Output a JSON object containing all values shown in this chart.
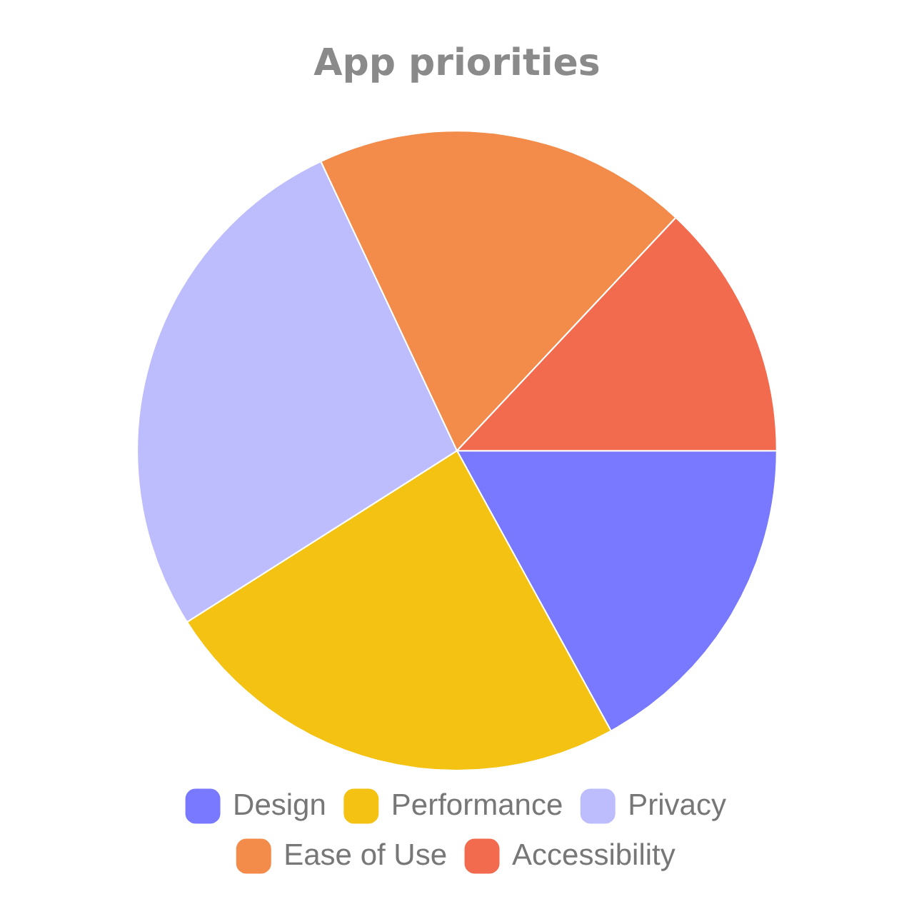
{
  "chart_data": {
    "type": "pie",
    "title": "App priorities",
    "categories": [
      "Design",
      "Performance",
      "Privacy",
      "Ease of Use",
      "Accessibility"
    ],
    "values": [
      17,
      24,
      27,
      19,
      13
    ],
    "colors": [
      "#7879ff",
      "#f4c212",
      "#bdbdfd",
      "#f38b4a",
      "#f26b4f"
    ],
    "legend": "bottom"
  }
}
